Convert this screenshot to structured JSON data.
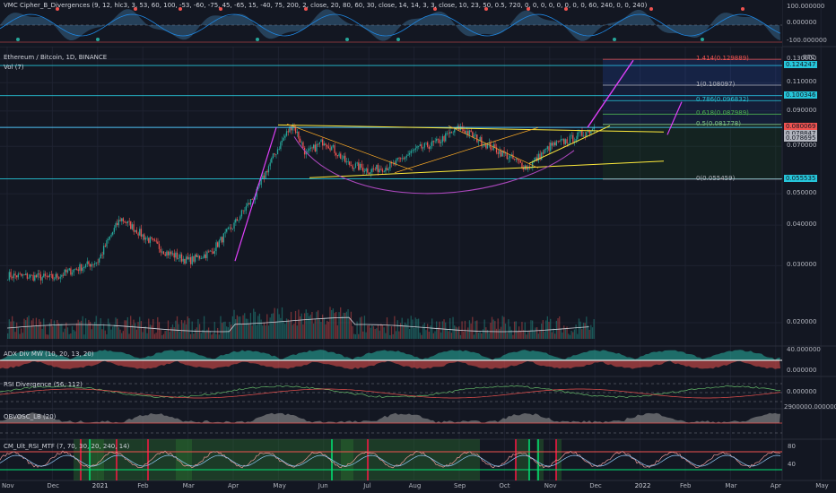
{
  "header": {
    "symbol_line": "Ethereum / Bitcoin, 1D, BINANCE",
    "vol_label": "Vol (7)",
    "currency": "BTC"
  },
  "panes": {
    "vmc": {
      "title": "VMC Cipher_B_Divergences (9, 12, hlc3, 3, 53, 60, 100, -53, -60, -75, 45, -65, 15, -40, 75, 200, 2, close, 20, 80, 60, 30, close, 14, 14, 3, 3, close, 10, 23, 50, 0.5, 720, 0, 0, 0, 0, 0, 0, 0, 0, 60, 240, 0, 0, 240)",
      "ticks": [
        "100.000000",
        "0.000000",
        "-100.000000"
      ]
    },
    "adx": {
      "title": "ADX Div MW (10, 20, 13, 20)",
      "ticks": [
        "40.000000",
        "0.000000"
      ]
    },
    "rsi": {
      "title": "RSI Divergence (56, 112)",
      "ticks": [
        "0.000000"
      ]
    },
    "obv": {
      "title": "OBVOSC_LB (20)",
      "ticks": [
        "2900000.000000"
      ]
    },
    "mtf": {
      "title": "CM_Ult_RSI_MTF (7, 70, 30, 20, 240, 14)",
      "ticks": [
        "80",
        "40"
      ]
    }
  },
  "price_axis": {
    "ticks": [
      "0.130000",
      "0.110000",
      "0.090000",
      "0.070000",
      "0.050000",
      "0.040000",
      "0.030000",
      "0.020000"
    ],
    "badges": [
      {
        "text": "0.124247",
        "color": "#26c6da"
      },
      {
        "text": "0.100346",
        "color": "#26c6da"
      },
      {
        "text": "0.080069",
        "color": "#ef5350"
      },
      {
        "text": "0.078847",
        "color": "#b2b5be"
      },
      {
        "text": "0.078695",
        "color": "#b2b5be"
      },
      {
        "text": "0.055535",
        "color": "#26c6da"
      }
    ]
  },
  "fib": [
    {
      "label": "1.414(0.129889)",
      "color": "#ef5350"
    },
    {
      "label": "1(0.108097)",
      "color": "#b2b5be"
    },
    {
      "label": "0.786(0.096832)",
      "color": "#26c6da"
    },
    {
      "label": "0.618(0.087989)",
      "color": "#4caf50"
    },
    {
      "label": "0.5(0.081778)",
      "color": "#81c784"
    },
    {
      "label": "0(0.055459)",
      "color": "#b2b5be"
    }
  ],
  "time_axis": [
    "Nov",
    "Dec",
    "2021",
    "Feb",
    "Mar",
    "Apr",
    "May",
    "Jun",
    "Jul",
    "Aug",
    "Sep",
    "Oct",
    "Nov",
    "Dec",
    "2022",
    "Feb",
    "Mar",
    "Apr",
    "May"
  ],
  "colors": {
    "up": "#26a69a",
    "down": "#ef5350",
    "bg": "#131722",
    "grid": "#1e2230",
    "cyan": "#26c6da",
    "yellow": "#ffeb3b",
    "magenta": "#e040fb"
  },
  "chart_data": {
    "type": "candlestick",
    "title": "Ethereum / Bitcoin, 1D, BINANCE",
    "x_unit": "month",
    "anchors": [
      {
        "m": 0,
        "p": 0.028
      },
      {
        "m": 1,
        "p": 0.0275
      },
      {
        "m": 2,
        "p": 0.031
      },
      {
        "m": 2.5,
        "p": 0.042
      },
      {
        "m": 3,
        "p": 0.037
      },
      {
        "m": 3.5,
        "p": 0.033
      },
      {
        "m": 4,
        "p": 0.031
      },
      {
        "m": 4.5,
        "p": 0.033
      },
      {
        "m": 5,
        "p": 0.04
      },
      {
        "m": 5.5,
        "p": 0.05
      },
      {
        "m": 6.0,
        "p": 0.07
      },
      {
        "m": 6.3,
        "p": 0.082
      },
      {
        "m": 6.6,
        "p": 0.066
      },
      {
        "m": 7.0,
        "p": 0.073
      },
      {
        "m": 7.5,
        "p": 0.062
      },
      {
        "m": 8.0,
        "p": 0.059
      },
      {
        "m": 8.5,
        "p": 0.061
      },
      {
        "m": 9.0,
        "p": 0.068
      },
      {
        "m": 9.5,
        "p": 0.072
      },
      {
        "m": 10.0,
        "p": 0.08
      },
      {
        "m": 10.5,
        "p": 0.072
      },
      {
        "m": 11.0,
        "p": 0.066
      },
      {
        "m": 11.5,
        "p": 0.06
      },
      {
        "m": 12.0,
        "p": 0.07
      },
      {
        "m": 12.5,
        "p": 0.074
      },
      {
        "m": 13.0,
        "p": 0.08
      }
    ],
    "last_price": 0.080069,
    "y_scale": "log"
  }
}
